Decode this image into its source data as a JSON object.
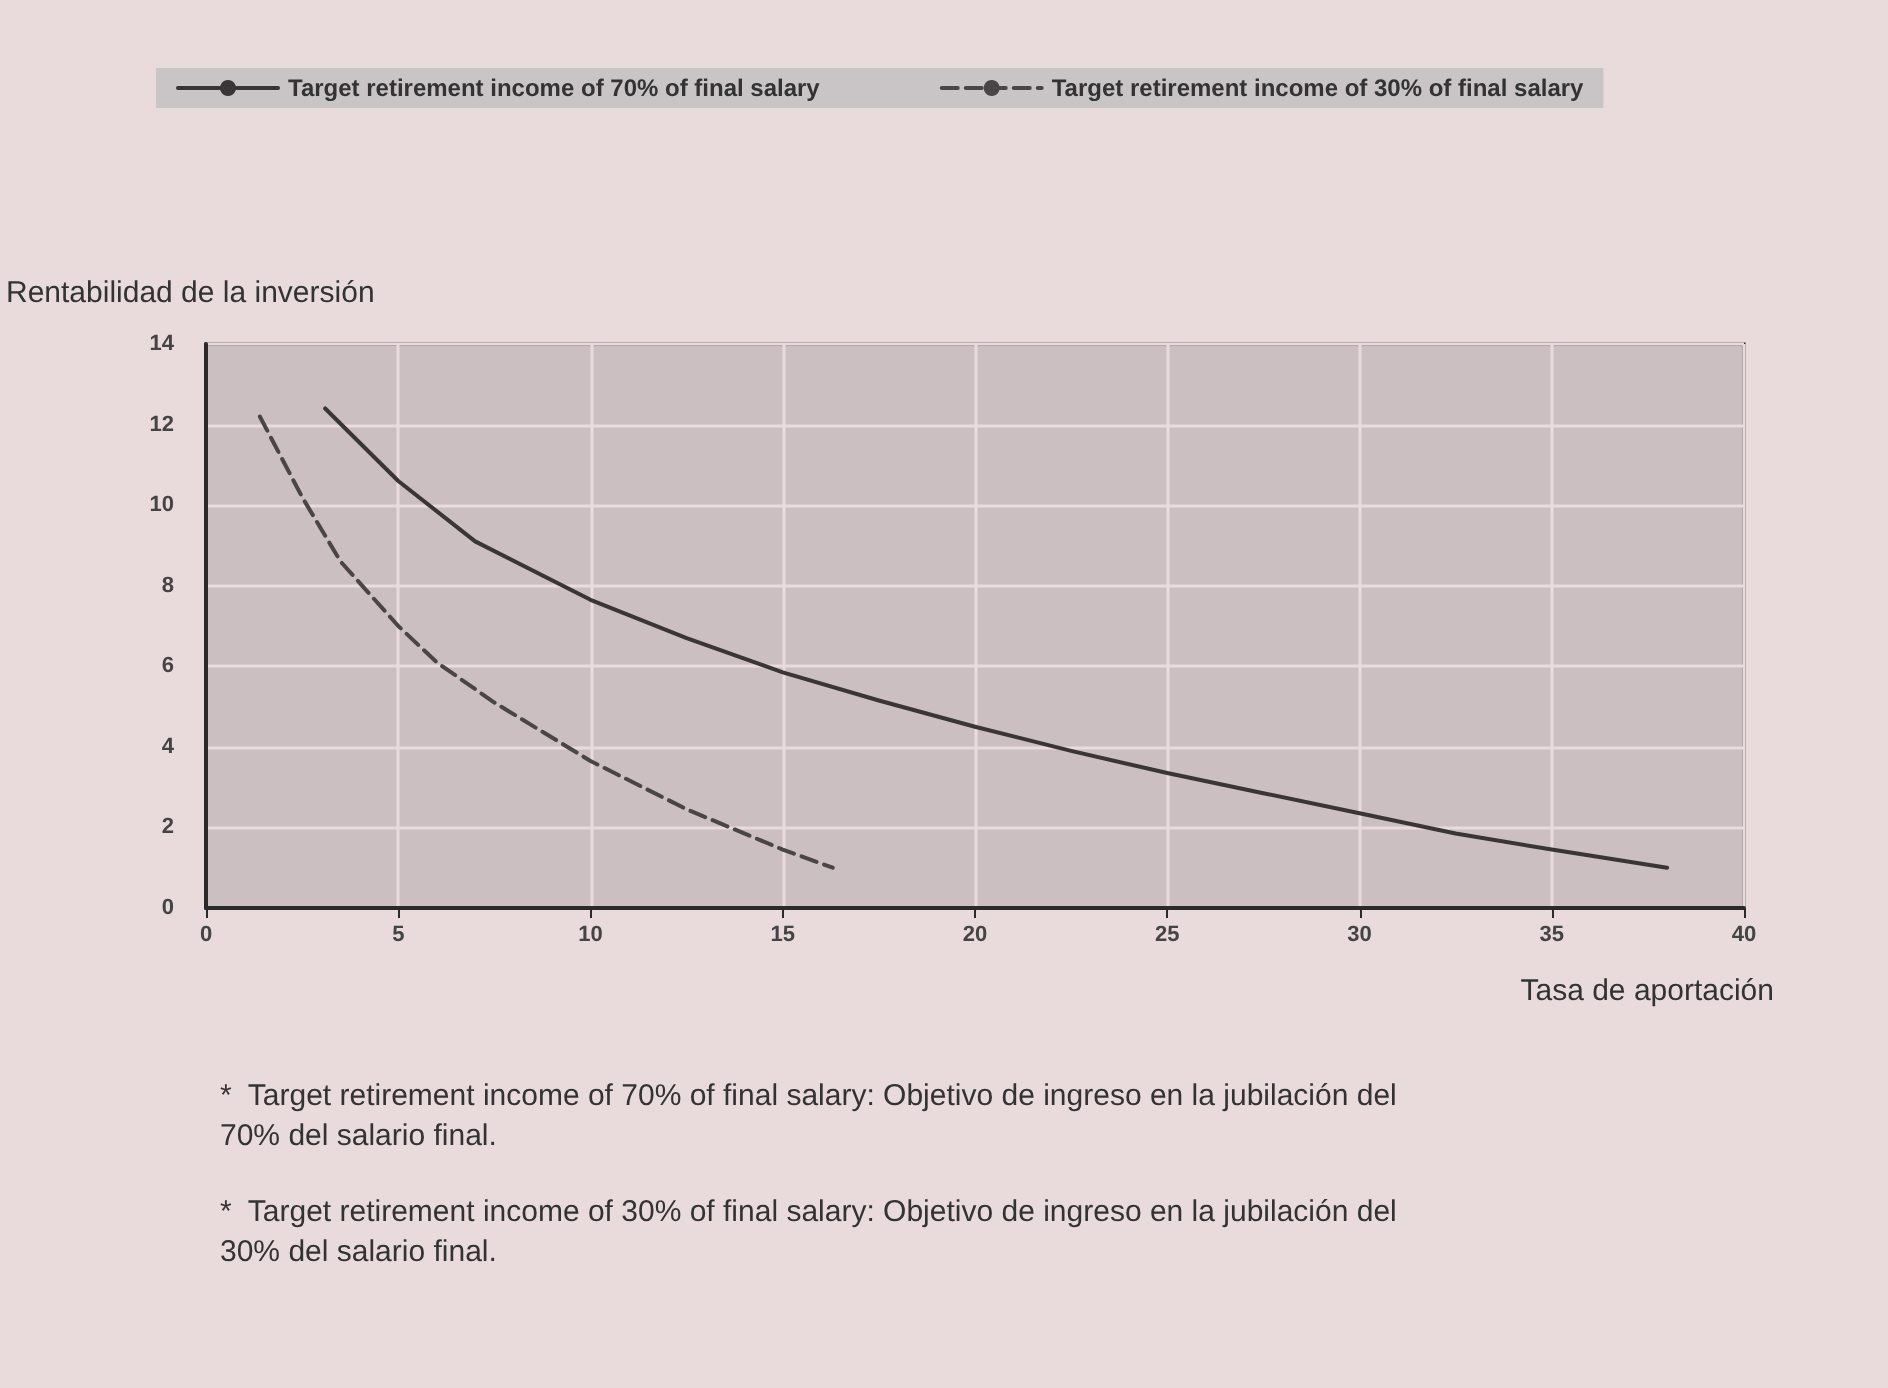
{
  "chart_data": {
    "type": "line",
    "ylabel": "Rentabilidad de la inversión",
    "xlabel": "Tasa de aportación",
    "xlim": [
      0,
      40
    ],
    "xticks": [
      0,
      5,
      10,
      15,
      20,
      25,
      30,
      35,
      40
    ],
    "ylim": [
      0,
      14
    ],
    "yticks": [
      0,
      2,
      4,
      6,
      8,
      10,
      12,
      14
    ],
    "grid": true,
    "legend": "top",
    "marker": "none",
    "series": [
      {
        "name": "Target retirement income of 70% of final salary",
        "color": "#3a3536",
        "line_style": "solid",
        "x": [
          3.1,
          5,
          7,
          10,
          12.5,
          15,
          17.5,
          20,
          22.5,
          25,
          27.5,
          30,
          32.5,
          35,
          38
        ],
        "values": [
          12.4,
          10.6,
          9.1,
          7.65,
          6.7,
          5.85,
          5.15,
          4.5,
          3.9,
          3.35,
          2.85,
          2.35,
          1.85,
          1.45,
          1.0
        ]
      },
      {
        "name": "Target retirement income of 30% of final salary",
        "color": "#4a4546",
        "line_style": "dashed",
        "x": [
          1.4,
          2.5,
          3.5,
          5,
          6,
          7.5,
          10,
          12.5,
          15,
          16.3
        ],
        "values": [
          12.2,
          10.2,
          8.6,
          7.0,
          6.1,
          5.1,
          3.65,
          2.45,
          1.45,
          1.0
        ]
      }
    ],
    "annotations": [
      "*  Target retirement income of 70% of final salary: Objetivo de ingreso en la jubilación del 70% del salario final.",
      "*  Target retirement income of 30% of final salary: Objetivo de ingreso en la jubilación del 30% del salario final."
    ]
  }
}
